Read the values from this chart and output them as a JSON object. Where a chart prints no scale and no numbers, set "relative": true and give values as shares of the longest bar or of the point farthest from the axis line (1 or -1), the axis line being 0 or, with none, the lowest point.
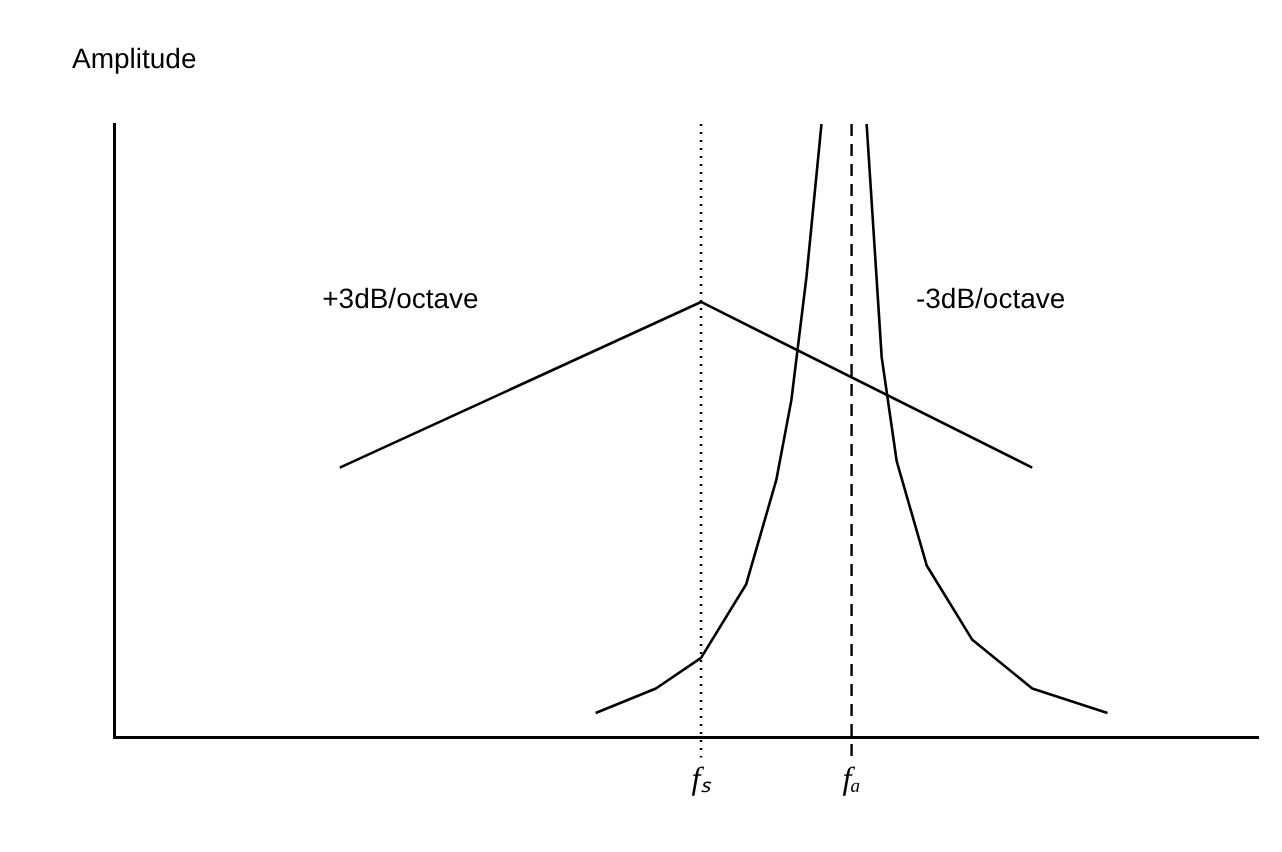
{
  "chart_data": {
    "type": "line",
    "relative": true,
    "ylabel": "Amplitude",
    "marker": "none",
    "legend": false,
    "grid": false,
    "categories": [
      null,
      null,
      null,
      null,
      null,
      null,
      null,
      null,
      null,
      null,
      null,
      null,
      null,
      null,
      null,
      null,
      null,
      null,
      null,
      null,
      null,
      null,
      null,
      null,
      null,
      null,
      null,
      null,
      null,
      null,
      null,
      null,
      null,
      null,
      null,
      null,
      null,
      null,
      null,
      "fₛ",
      null,
      null,
      null,
      null,
      null,
      null,
      null,
      null,
      null,
      "fₐ",
      null,
      null,
      null,
      null,
      null,
      null,
      null,
      null,
      null,
      null,
      null,
      null,
      null,
      null,
      null,
      null,
      null,
      null,
      null,
      null,
      null,
      null,
      null,
      null,
      null,
      null,
      null
    ],
    "series": [
      {
        "color": "#000000",
        "values": [
          null,
          null,
          null,
          null,
          null,
          null,
          null,
          null,
          null,
          null,
          null,
          null,
          null,
          null,
          null,
          0.44,
          null,
          null,
          null,
          null,
          null,
          null,
          null,
          null,
          null,
          null,
          null,
          null,
          null,
          null,
          null,
          null,
          null,
          null,
          null,
          null,
          null,
          null,
          null,
          0.71,
          null,
          null,
          null,
          null,
          null,
          null,
          null,
          null,
          null,
          null,
          null,
          null,
          null,
          null,
          null,
          null,
          null,
          null,
          null,
          null,
          null,
          0.44,
          null,
          null,
          null,
          null,
          null,
          null,
          null,
          null,
          null,
          null,
          null,
          null,
          null,
          null,
          null
        ]
      },
      {
        "color": "#000000",
        "values": [
          null,
          null,
          null,
          null,
          null,
          null,
          null,
          null,
          null,
          null,
          null,
          null,
          null,
          null,
          null,
          null,
          null,
          null,
          null,
          null,
          null,
          null,
          null,
          null,
          null,
          null,
          null,
          null,
          null,
          null,
          null,
          null,
          0.04,
          null,
          null,
          null,
          0.08,
          null,
          null,
          0.13,
          null,
          null,
          0.25,
          null,
          0.42,
          0.55,
          0.75,
          1,
          null,
          null,
          null,
          null,
          null,
          null,
          null,
          null,
          null,
          null,
          null,
          null,
          null,
          null,
          null,
          null,
          null,
          null,
          null,
          null,
          null,
          null,
          null,
          null,
          null,
          null,
          null,
          null,
          null
        ]
      },
      {
        "color": "#000000",
        "values": [
          null,
          null,
          null,
          null,
          null,
          null,
          null,
          null,
          null,
          null,
          null,
          null,
          null,
          null,
          null,
          null,
          null,
          null,
          null,
          null,
          null,
          null,
          null,
          null,
          null,
          null,
          null,
          null,
          null,
          null,
          null,
          null,
          null,
          null,
          null,
          null,
          null,
          null,
          null,
          null,
          null,
          null,
          null,
          null,
          null,
          null,
          null,
          null,
          null,
          null,
          1,
          0.62,
          0.45,
          null,
          0.28,
          null,
          null,
          0.16,
          null,
          null,
          null,
          0.08,
          null,
          null,
          null,
          null,
          0.04,
          null,
          null,
          null,
          null,
          null,
          null,
          null,
          null,
          null,
          null
        ]
      }
    ],
    "ref_lines": [
      {
        "axis": "x",
        "value": "fₛ",
        "line_style": "dotted",
        "color": "#000000"
      },
      {
        "axis": "x",
        "value": "fₐ",
        "line_style": "dashed",
        "color": "#000000"
      }
    ],
    "annotations": [
      "+3dB/octave",
      "-3dB/octave"
    ]
  }
}
